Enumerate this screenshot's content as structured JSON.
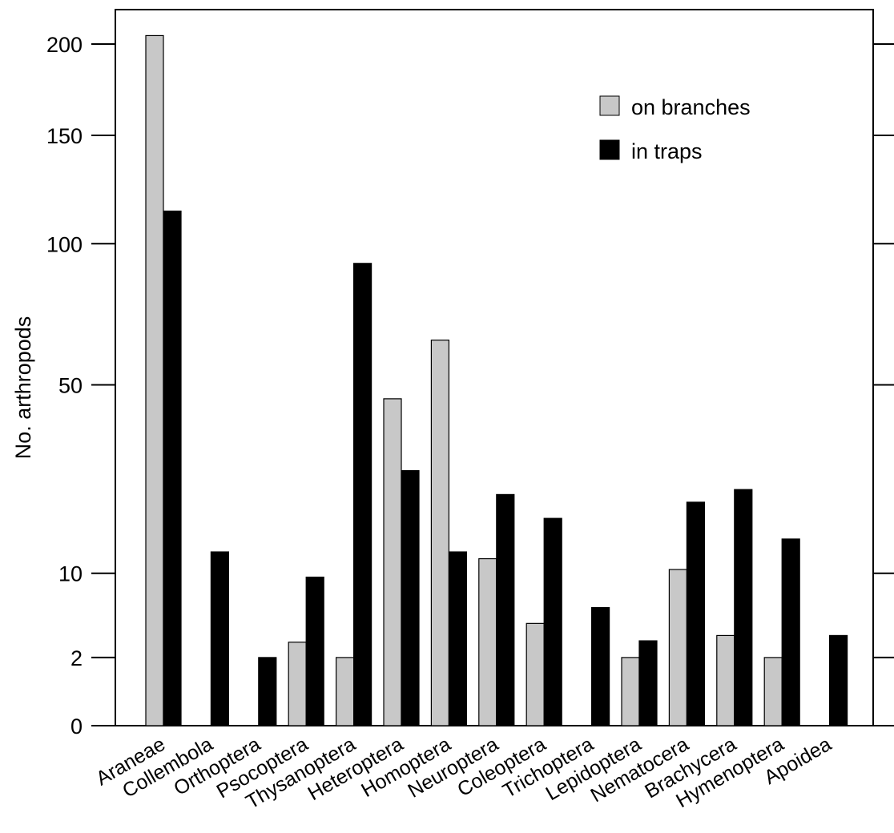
{
  "chart_data": {
    "type": "bar",
    "title": "",
    "xlabel": "",
    "ylabel": "No. arthropods",
    "y_scale": "square-root",
    "ylim": [
      0,
      216
    ],
    "yticks": [
      0,
      2,
      10,
      50,
      100,
      150,
      200
    ],
    "grid": false,
    "legend_position": "top-right",
    "categories": [
      "Araneae",
      "Collembola",
      "Orthoptera",
      "Psocoptera",
      "Thysanoptera",
      "Heteroptera",
      "Homoptera",
      "Neuroptera",
      "Coleoptera",
      "Trichoptera",
      "Lepidoptera",
      "Nematocera",
      "Brachycera",
      "Hymenoptera",
      "Apoidea"
    ],
    "series": [
      {
        "name": "on branches",
        "color": "#c8c8c8",
        "values": [
          205,
          0,
          0,
          3,
          2,
          46,
          64,
          12,
          4.5,
          0,
          2,
          10.5,
          3.5,
          2,
          0
        ]
      },
      {
        "name": "in traps",
        "color": "#000000",
        "values": [
          114,
          13,
          2,
          9.5,
          92,
          28,
          13,
          23,
          18.5,
          6,
          3.1,
          21.5,
          24,
          15,
          3.5
        ]
      }
    ]
  }
}
